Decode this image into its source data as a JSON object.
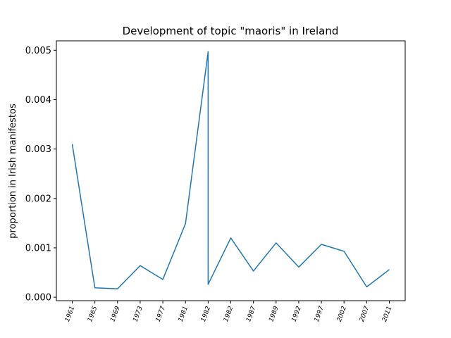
{
  "chart_data": {
    "type": "line",
    "title": "Development of topic \"maoris\" in Ireland",
    "ylabel": "proportion in Irish manifestos",
    "x": [
      0,
      1,
      2,
      3,
      4,
      5,
      6,
      6,
      7,
      8,
      9,
      10,
      11,
      12,
      13,
      14
    ],
    "values": [
      0.0031,
      0.00019,
      0.00017,
      0.00064,
      0.00036,
      0.00149,
      0.00497,
      0.00026,
      0.0012,
      0.00053,
      0.0011,
      0.00061,
      0.00107,
      0.00093,
      0.00021,
      0.00056
    ],
    "color": "#1f77b4",
    "xlim": [
      -0.7,
      14.7
    ],
    "xticks": [
      {
        "value": 0,
        "label": "1961"
      },
      {
        "value": 1,
        "label": "1965"
      },
      {
        "value": 2,
        "label": "1969"
      },
      {
        "value": 3,
        "label": "1973"
      },
      {
        "value": 4,
        "label": "1977"
      },
      {
        "value": 5,
        "label": "1981"
      },
      {
        "value": 6,
        "label": "1982"
      },
      {
        "value": 7,
        "label": "1982"
      },
      {
        "value": 8,
        "label": "1987"
      },
      {
        "value": 9,
        "label": "1989"
      },
      {
        "value": 10,
        "label": "1992"
      },
      {
        "value": 11,
        "label": "1997"
      },
      {
        "value": 12,
        "label": "2002"
      },
      {
        "value": 13,
        "label": "2007"
      },
      {
        "value": 14,
        "label": "2011"
      }
    ],
    "ylim": [
      -7e-05,
      0.00519
    ],
    "yticks": [
      {
        "value": 0,
        "label": "0.000"
      },
      {
        "value": 0.001,
        "label": "0.001"
      },
      {
        "value": 0.002,
        "label": "0.002"
      },
      {
        "value": 0.003,
        "label": "0.003"
      },
      {
        "value": 0.004,
        "label": "0.004"
      },
      {
        "value": 0.005,
        "label": "0.005"
      }
    ]
  }
}
